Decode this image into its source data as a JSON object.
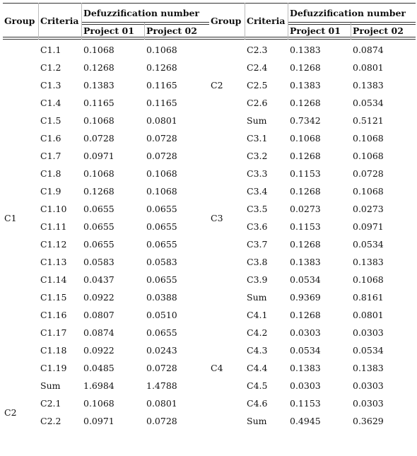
{
  "headers": {
    "group": "Group",
    "criteria": "Criteria",
    "defuzz": "Defuzzification number",
    "project1": "Project 01",
    "project2": "Project 02"
  },
  "left": {
    "rows": [
      {
        "criteria": "C1.1",
        "p1": "0.1068",
        "p2": "0.1068"
      },
      {
        "criteria": "C1.2",
        "p1": "0.1268",
        "p2": "0.1268"
      },
      {
        "criteria": "C1.3",
        "p1": "0.1383",
        "p2": "0.1165"
      },
      {
        "criteria": "C1.4",
        "p1": "0.1165",
        "p2": "0.1165"
      },
      {
        "criteria": "C1.5",
        "p1": "0.1068",
        "p2": "0.0801"
      },
      {
        "criteria": "C1.6",
        "p1": "0.0728",
        "p2": "0.0728"
      },
      {
        "criteria": "C1.7",
        "p1": "0.0971",
        "p2": "0.0728"
      },
      {
        "criteria": "C1.8",
        "p1": "0.1068",
        "p2": "0.1068"
      },
      {
        "criteria": "C1.9",
        "p1": "0.1268",
        "p2": "0.1068"
      },
      {
        "criteria": "C1.10",
        "p1": "0.0655",
        "p2": "0.0655"
      },
      {
        "criteria": "C1.11",
        "p1": "0.0655",
        "p2": "0.0655"
      },
      {
        "criteria": "C1.12",
        "p1": "0.0655",
        "p2": "0.0655"
      },
      {
        "criteria": "C1.13",
        "p1": "0.0583",
        "p2": "0.0583"
      },
      {
        "criteria": "C1.14",
        "p1": "0.0437",
        "p2": "0.0655"
      },
      {
        "criteria": "C1.15",
        "p1": "0.0922",
        "p2": "0.0388"
      },
      {
        "criteria": "C1.16",
        "p1": "0.0807",
        "p2": "0.0510"
      },
      {
        "criteria": "C1.17",
        "p1": "0.0874",
        "p2": "0.0655"
      },
      {
        "criteria": "C1.18",
        "p1": "0.0922",
        "p2": "0.0243"
      },
      {
        "criteria": "C1.19",
        "p1": "0.0485",
        "p2": "0.0728"
      },
      {
        "criteria": "Sum",
        "p1": "1.6984",
        "p2": "1.4788"
      },
      {
        "criteria": "C2.1",
        "p1": "0.1068",
        "p2": "0.0801"
      },
      {
        "criteria": "C2.2",
        "p1": "0.0971",
        "p2": "0.0728"
      }
    ],
    "groups": [
      {
        "label": "C1",
        "start": 0,
        "end": 19
      },
      {
        "label": "C2",
        "start": 20,
        "end": 21
      }
    ]
  },
  "right": {
    "rows": [
      {
        "criteria": "C2.3",
        "p1": "0.1383",
        "p2": "0.0874"
      },
      {
        "criteria": "C2.4",
        "p1": "0.1268",
        "p2": "0.0801"
      },
      {
        "criteria": "C2.5",
        "p1": "0.1383",
        "p2": "0.1383"
      },
      {
        "criteria": "C2.6",
        "p1": "0.1268",
        "p2": "0.0534"
      },
      {
        "criteria": "Sum",
        "p1": "0.7342",
        "p2": "0.5121"
      },
      {
        "criteria": "C3.1",
        "p1": "0.1068",
        "p2": "0.1068"
      },
      {
        "criteria": "C3.2",
        "p1": "0.1268",
        "p2": "0.1068"
      },
      {
        "criteria": "C3.3",
        "p1": "0.1153",
        "p2": "0.0728"
      },
      {
        "criteria": "C3.4",
        "p1": "0.1268",
        "p2": "0.1068"
      },
      {
        "criteria": "C3.5",
        "p1": "0.0273",
        "p2": "0.0273"
      },
      {
        "criteria": "C3.6",
        "p1": "0.1153",
        "p2": "0.0971"
      },
      {
        "criteria": "C3.7",
        "p1": "0.1268",
        "p2": "0.0534"
      },
      {
        "criteria": "C3.8",
        "p1": "0.1383",
        "p2": "0.1383"
      },
      {
        "criteria": "C3.9",
        "p1": "0.0534",
        "p2": "0.1068"
      },
      {
        "criteria": "Sum",
        "p1": "0.9369",
        "p2": "0.8161"
      },
      {
        "criteria": "C4.1",
        "p1": "0.1268",
        "p2": "0.0801"
      },
      {
        "criteria": "C4.2",
        "p1": "0.0303",
        "p2": "0.0303"
      },
      {
        "criteria": "C4.3",
        "p1": "0.0534",
        "p2": "0.0534"
      },
      {
        "criteria": "C4.4",
        "p1": "0.1383",
        "p2": "0.1383"
      },
      {
        "criteria": "C4.5",
        "p1": "0.0303",
        "p2": "0.0303"
      },
      {
        "criteria": "C4.6",
        "p1": "0.1153",
        "p2": "0.0303"
      },
      {
        "criteria": "Sum",
        "p1": "0.4945",
        "p2": "0.3629"
      }
    ],
    "groups": [
      {
        "label": "C2",
        "start": 0,
        "end": 4
      },
      {
        "label": "C3",
        "start": 5,
        "end": 14
      },
      {
        "label": "C4",
        "start": 15,
        "end": 21
      }
    ]
  }
}
